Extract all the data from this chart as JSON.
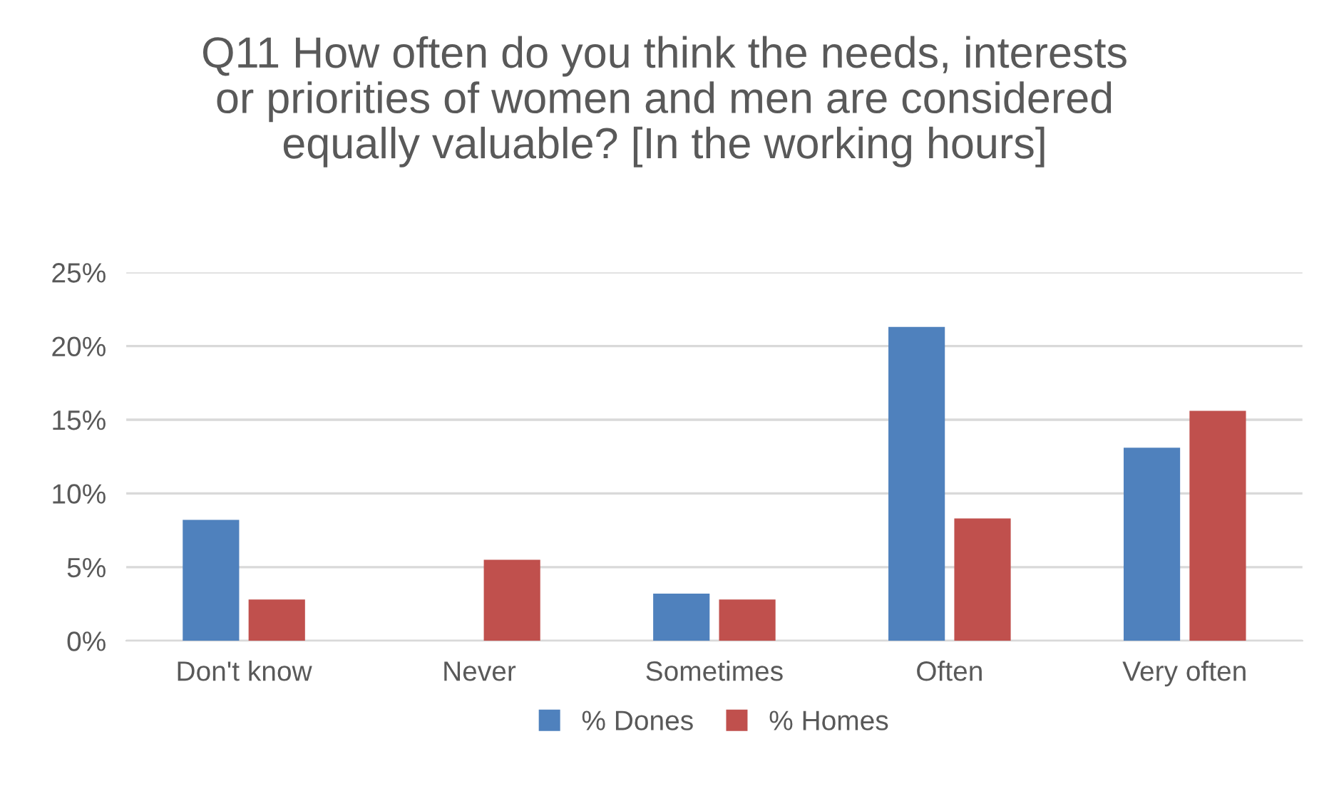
{
  "chart_data": {
    "type": "bar",
    "title": "Q11 How often do you think the needs, interests\nor priorities of women and men are considered\nequally valuable? [In the working hours]",
    "categories": [
      "Don't know",
      "Never",
      "Sometimes",
      "Often",
      "Very often"
    ],
    "series": [
      {
        "name": "% Dones",
        "color": "#4f81bd",
        "values": [
          8.2,
          0,
          3.2,
          21.3,
          13.1
        ]
      },
      {
        "name": "% Homes",
        "color": "#c0504d",
        "values": [
          2.8,
          5.5,
          2.8,
          8.3,
          15.6
        ]
      }
    ],
    "ylim": [
      0,
      25
    ],
    "yticks": [
      {
        "value": 0,
        "label": "0%"
      },
      {
        "value": 5,
        "label": "5%"
      },
      {
        "value": 10,
        "label": "10%"
      },
      {
        "value": 15,
        "label": "15%"
      },
      {
        "value": 20,
        "label": "20%"
      },
      {
        "value": 25,
        "label": "25%"
      }
    ],
    "grid": "y",
    "legend": "bottom"
  }
}
